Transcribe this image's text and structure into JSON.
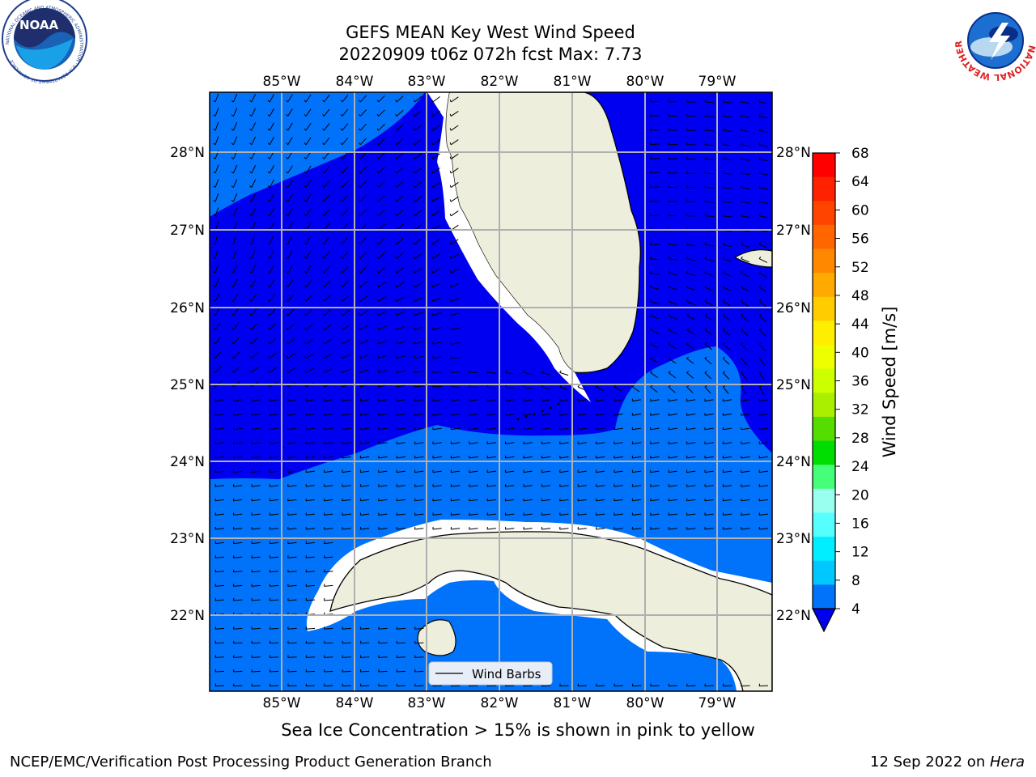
{
  "title": {
    "line1": "GEFS MEAN Key West Wind Speed",
    "line2": "20220909 t06z 072h fcst   Max: 7.73"
  },
  "map": {
    "lon_labels": [
      "85°W",
      "84°W",
      "83°W",
      "82°W",
      "81°W",
      "80°W",
      "79°W"
    ],
    "lat_labels": [
      "28°N",
      "27°N",
      "26°N",
      "25°N",
      "24°N",
      "23°N",
      "22°N"
    ],
    "legend_label": "Wind Barbs",
    "colors": {
      "land": "#eeeedd",
      "water_low": "#0000f0",
      "water_mid": "#0073fa",
      "coast": "#000000",
      "grid": "#b0b0b0"
    }
  },
  "colorbar": {
    "label": "Wind Speed [m/s]",
    "ticks": [
      "68",
      "64",
      "60",
      "56",
      "52",
      "48",
      "44",
      "40",
      "36",
      "32",
      "28",
      "24",
      "20",
      "16",
      "12",
      "8",
      "4"
    ],
    "colors": [
      "#ff0000",
      "#ff2200",
      "#ff4400",
      "#ff6600",
      "#ff8800",
      "#ffaa00",
      "#ffcc00",
      "#ffee00",
      "#eeff00",
      "#ccff00",
      "#aaee00",
      "#55dd00",
      "#00dd00",
      "#44ff77",
      "#99ffee",
      "#55ffff",
      "#00eeff",
      "#00c8ff",
      "#0073fa"
    ],
    "extend_color": "#0000f0"
  },
  "caption": "Sea Ice Concentration > 15% is shown in pink to yellow",
  "footer": {
    "left": "NCEP/EMC/Verification Post Processing Product Generation Branch",
    "date": "12 Sep 2022 on ",
    "host": "Hera"
  },
  "logos": {
    "noaa_text": "NOAA",
    "noaa_ring": "NATIONAL OCEANIC AND ATMOSPHERIC ADMINISTRATION · U.S. DEPARTMENT OF COMMERCE",
    "nws_ring": "NATIONAL WEATHER SERVICE"
  }
}
